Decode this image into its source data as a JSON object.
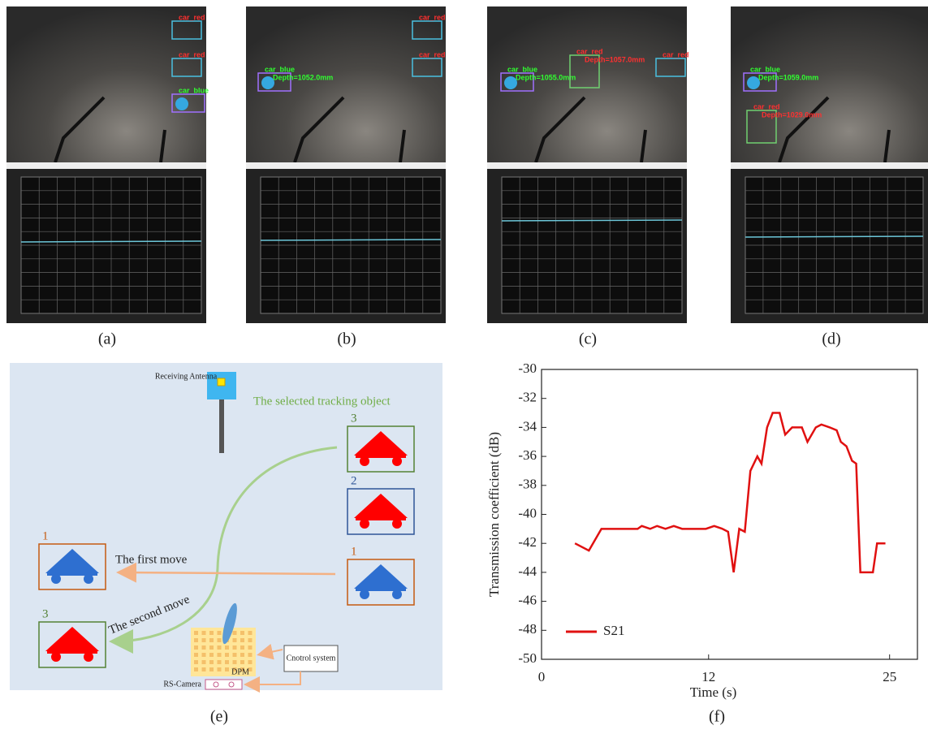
{
  "panels": [
    {
      "caption": "(a)",
      "detections": [
        {
          "label": "car_red"
        },
        {
          "label": "car_red"
        },
        {
          "label": "car_blue"
        }
      ]
    },
    {
      "caption": "(b)",
      "detections": [
        {
          "label": "car_blue",
          "depth": "Depth=1052.0mm"
        },
        {
          "label": "car_red"
        },
        {
          "label": "car_red"
        }
      ]
    },
    {
      "caption": "(c)",
      "detections": [
        {
          "label": "car_blue",
          "depth": "Depth=1055.0mm"
        },
        {
          "label": "car_red",
          "depth": "Depth=1057.0mm"
        },
        {
          "label": "car_red"
        }
      ]
    },
    {
      "caption": "(d)",
      "detections": [
        {
          "label": "car_blue",
          "depth": "Depth=1059.0mm"
        },
        {
          "label": "car_red",
          "depth": "Depth=1029.0mm"
        }
      ]
    }
  ],
  "diagram": {
    "caption": "(e)",
    "antenna": "Receiving Antenna",
    "selected": "The selected tracking object",
    "ids": [
      "3",
      "2",
      "1",
      "1",
      "3"
    ],
    "first_move": "The first move",
    "second_move": "The second move",
    "control": "Cnotrol system",
    "dpm": "DPM",
    "camera": "RS-Camera"
  },
  "chart_data": {
    "type": "line",
    "caption": "(f)",
    "x_label": "Time (s)",
    "y_label": "Transmission coefficient (dB)",
    "xlim": [
      0,
      27
    ],
    "xticks": [
      0,
      12,
      25
    ],
    "ylim": [
      -50,
      -30
    ],
    "yticks": [
      -30,
      -32,
      -34,
      -36,
      -38,
      -40,
      -42,
      -44,
      -46,
      -48,
      -50
    ],
    "legend": "lower left",
    "series": [
      {
        "name": "S21",
        "color": "#e01010",
        "x": [
          2.4,
          3.4,
          4.3,
          6.9,
          7.2,
          7.8,
          8.3,
          8.9,
          9.5,
          10.1,
          11.8,
          12.4,
          13.0,
          13.4,
          13.8,
          14.2,
          14.6,
          15.0,
          15.5,
          15.8,
          16.2,
          16.6,
          17.1,
          17.5,
          18.0,
          18.7,
          19.1,
          19.7,
          20.1,
          20.7,
          21.2,
          21.5,
          21.9,
          22.3,
          22.6,
          22.9,
          23.8,
          24.1,
          24.7
        ],
        "values": [
          -42,
          -42.5,
          -41,
          -41,
          -40.8,
          -41,
          -40.8,
          -41,
          -40.8,
          -41,
          -41,
          -40.8,
          -41,
          -41.2,
          -44,
          -41,
          -41.2,
          -37,
          -36,
          -36.5,
          -34,
          -33,
          -33,
          -34.5,
          -34,
          -34,
          -35,
          -34,
          -33.8,
          -34,
          -34.2,
          -35,
          -35.3,
          -36.3,
          -36.5,
          -44,
          -44,
          -42,
          -42
        ]
      }
    ]
  }
}
